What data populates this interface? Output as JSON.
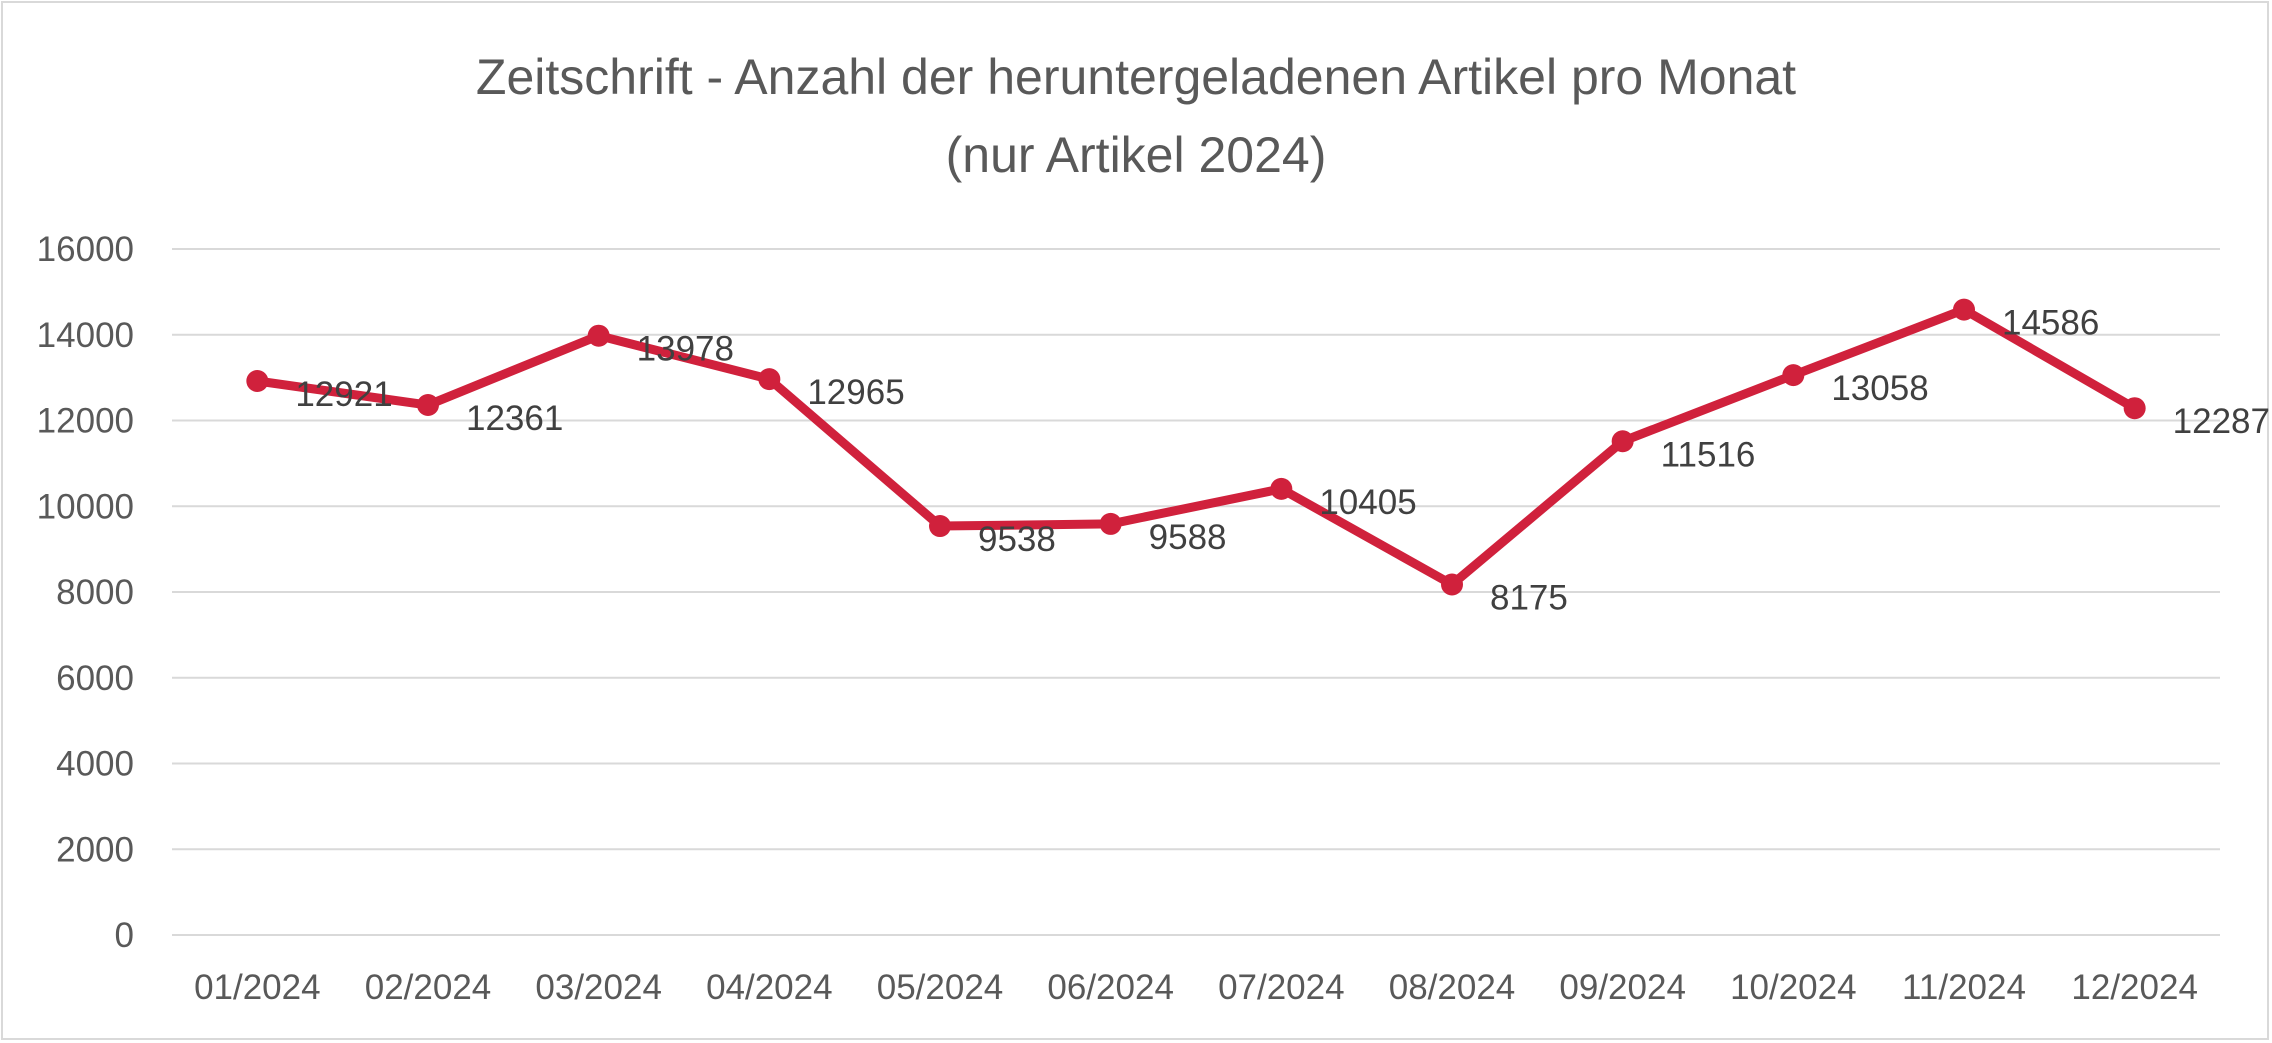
{
  "chart_data": {
    "type": "line",
    "title": "Zeitschrift - Anzahl der heruntergeladenen Artikel pro Monat",
    "subtitle": "(nur Artikel 2024)",
    "xlabel": "",
    "ylabel": "",
    "categories": [
      "01/2024",
      "02/2024",
      "03/2024",
      "04/2024",
      "05/2024",
      "06/2024",
      "07/2024",
      "08/2024",
      "09/2024",
      "10/2024",
      "11/2024",
      "12/2024"
    ],
    "series": [
      {
        "values": [
          12921,
          12361,
          13978,
          12965,
          9538,
          9588,
          10405,
          8175,
          11516,
          13058,
          14586,
          12287
        ],
        "color": "#d0213c"
      }
    ],
    "ylim": [
      0,
      16000
    ],
    "yticks": [
      "0",
      "2000",
      "4000",
      "6000",
      "8000",
      "10000",
      "12000",
      "14000",
      "16000"
    ],
    "data_labels": [
      "12921",
      "12361",
      "13978",
      "12965",
      "9538",
      "9588",
      "10405",
      "8175",
      "11516",
      "13058",
      "14586",
      "12287"
    ],
    "grid": true,
    "legend": "none"
  }
}
